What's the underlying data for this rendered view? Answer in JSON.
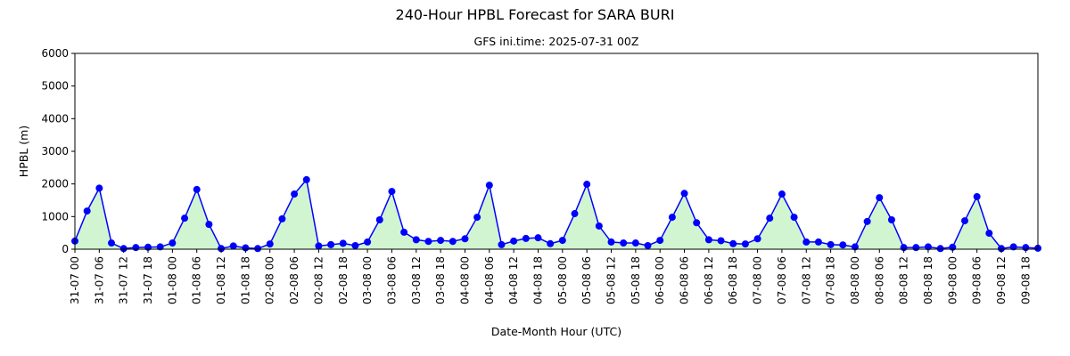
{
  "chart_data": {
    "type": "line",
    "title": "240-Hour HPBL Forecast for SARA BURI",
    "subtitle": "GFS ini.time: 2025-07-31 00Z",
    "xlabel": "Date-Month Hour (UTC)",
    "ylabel": "HPBL (m)",
    "categories": [
      "31-07 00",
      null,
      "31-07 06",
      null,
      "31-07 12",
      null,
      "31-07 18",
      null,
      "01-08 00",
      null,
      "01-08 06",
      null,
      "01-08 12",
      null,
      "01-08 18",
      null,
      "02-08 00",
      null,
      "02-08 06",
      null,
      "02-08 12",
      null,
      "02-08 18",
      null,
      "03-08 00",
      null,
      "03-08 06",
      null,
      "03-08 12",
      null,
      "03-08 18",
      null,
      "04-08 00",
      null,
      "04-08 06",
      null,
      "04-08 12",
      null,
      "04-08 18",
      null,
      "05-08 00",
      null,
      "05-08 06",
      null,
      "05-08 12",
      null,
      "05-08 18",
      null,
      "06-08 00",
      null,
      "06-08 06",
      null,
      "06-08 12",
      null,
      "06-08 18",
      null,
      "07-08 00",
      null,
      "07-08 06",
      null,
      "07-08 12",
      null,
      "07-08 18",
      null,
      "08-08 00",
      null,
      "08-08 06",
      null,
      "08-08 12",
      null,
      "08-08 18",
      null,
      "09-08 00",
      null,
      "09-08 06",
      null,
      "09-08 12",
      null,
      "09-08 18",
      null
    ],
    "series": [
      {
        "color": "#0000ff",
        "fill_color": "#d0f5d0",
        "values": [
          250,
          1170,
          1870,
          190,
          20,
          50,
          60,
          70,
          190,
          950,
          1830,
          760,
          20,
          100,
          40,
          20,
          160,
          930,
          1690,
          2130,
          100,
          140,
          180,
          110,
          220,
          900,
          1770,
          520,
          290,
          240,
          270,
          240,
          320,
          980,
          1960,
          140,
          250,
          330,
          350,
          170,
          270,
          1090,
          1990,
          710,
          220,
          190,
          190,
          110,
          270,
          980,
          1710,
          810,
          290,
          260,
          170,
          160,
          320,
          950,
          1690,
          980,
          220,
          220,
          140,
          130,
          70,
          850,
          1580,
          900,
          50,
          50,
          70,
          20,
          60,
          870,
          1610,
          490,
          20,
          70,
          50,
          30
        ]
      }
    ],
    "ylim": [
      0,
      6000
    ],
    "yticks": [
      0,
      1000,
      2000,
      3000,
      4000,
      5000,
      6000
    ],
    "grid": false
  }
}
